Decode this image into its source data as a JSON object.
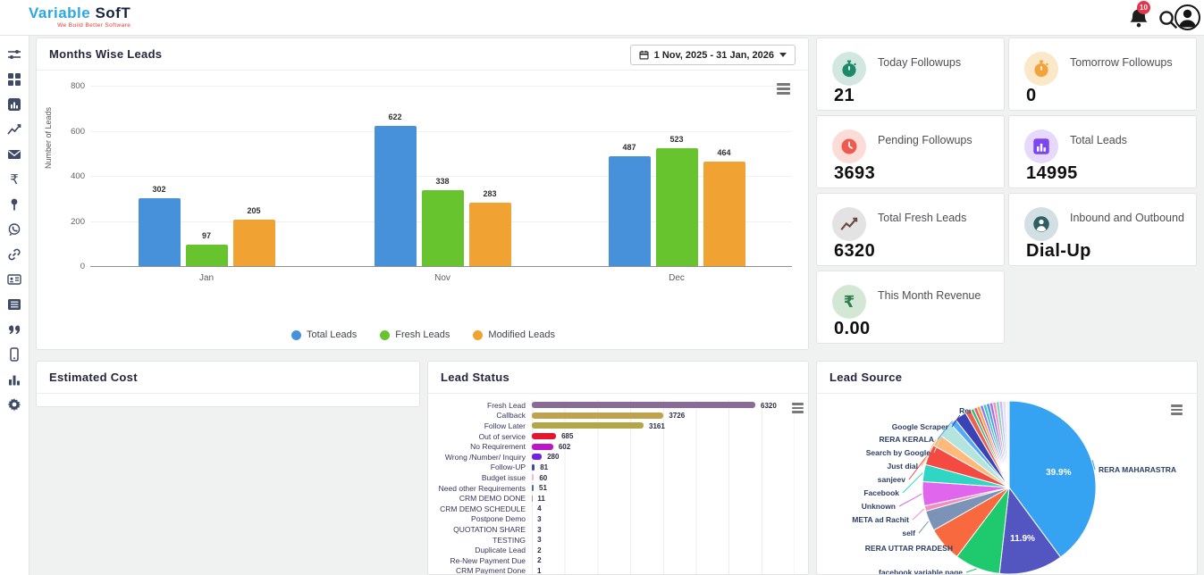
{
  "header": {
    "logo": {
      "part1": "Variable ",
      "part2": "Sof",
      "part3": "T",
      "tagline": "We Build Better Software"
    },
    "notifications_badge": "10"
  },
  "sidebar": {
    "items": [
      {
        "icon": "sliders"
      },
      {
        "icon": "grid"
      },
      {
        "icon": "chart-square"
      },
      {
        "icon": "line-chart"
      },
      {
        "icon": "mail"
      },
      {
        "icon": "rupee"
      },
      {
        "icon": "pin"
      },
      {
        "icon": "whatsapp"
      },
      {
        "icon": "link"
      },
      {
        "icon": "id-card"
      },
      {
        "icon": "list"
      },
      {
        "icon": "quote"
      },
      {
        "icon": "mobile"
      },
      {
        "icon": "bar-chart"
      },
      {
        "icon": "gear"
      }
    ]
  },
  "months_chart": {
    "title": "Months Wise Leads",
    "date_range": "1 Nov, 2025 - 31 Jan, 2026",
    "chart_data": {
      "type": "bar",
      "categories": [
        "Jan",
        "Nov",
        "Dec"
      ],
      "series": [
        {
          "name": "Total Leads",
          "color": "#4791db",
          "values": [
            302,
            622,
            487
          ]
        },
        {
          "name": "Fresh Leads",
          "color": "#67c42f",
          "values": [
            97,
            338,
            523
          ]
        },
        {
          "name": "Modified Leads",
          "color": "#f0a332",
          "values": [
            205,
            283,
            464
          ]
        }
      ],
      "xlabel": "",
      "ylabel": "Number of Leads",
      "ylim": [
        0,
        800
      ],
      "yticks": [
        0,
        200,
        400,
        600,
        800
      ],
      "legend_position": "bottom",
      "grid": true
    }
  },
  "stat_cards": [
    {
      "title": "Today Followups",
      "value": "21",
      "icon": "stopwatch",
      "icon_color": "#1d8a6a",
      "icon_bg": "#d2e7df"
    },
    {
      "title": "Tomorrow Followups",
      "value": "0",
      "icon": "stopwatch",
      "icon_color": "#f2a33c",
      "icon_bg": "#fbe8c9"
    },
    {
      "title": "Pending Followups",
      "value": "3693",
      "icon": "clock",
      "icon_color": "#f2594e",
      "icon_bg": "#fcdcd6"
    },
    {
      "title": "Total Leads",
      "value": "14995",
      "icon": "chart-square",
      "icon_color": "#7d45ef",
      "icon_bg": "#e6d9fb"
    },
    {
      "title": "Total Fresh Leads",
      "value": "6320",
      "icon": "line-chart",
      "icon_color": "#6b4a42",
      "icon_bg": "#e3e3e3"
    },
    {
      "title": "Inbound and Outbound",
      "value": "Dial-Up",
      "icon": "person",
      "icon_color": "#2d5f63",
      "icon_bg": "#d2e0e4"
    },
    {
      "title": "This Month Revenue",
      "value": "0.00",
      "icon": "rupee",
      "icon_color": "#2f7d4e",
      "icon_bg": "#d3e8d4"
    }
  ],
  "estimated_cost": {
    "title": "Estimated Cost"
  },
  "lead_status": {
    "title": "Lead Status",
    "chart_data": {
      "type": "bar",
      "orientation": "horizontal",
      "categories": [
        "Fresh Lead",
        "Callback",
        "Follow Later",
        "Out of service",
        "No Requirement",
        "Wrong /Number/ Inquiry",
        "Follow-UP",
        "Budget issue",
        "Need other Requirements",
        "CRM DEMO DONE",
        "CRM DEMO SCHEDULE",
        "Postpone Demo",
        "QUOTATION SHARE",
        "TESTING",
        "Duplicate Lead",
        "Re-New Payment Due",
        "CRM Payment Done"
      ],
      "values": [
        6320,
        3726,
        3161,
        685,
        602,
        280,
        81,
        60,
        51,
        11,
        4,
        3,
        3,
        3,
        2,
        2,
        1
      ],
      "colors": [
        "#8a6a96",
        "#bfa14e",
        "#b3a648",
        "#e8132c",
        "#bd13c9",
        "#7222e2",
        "#3949ab",
        "#f8b4d9",
        "#4f7396",
        "#999999",
        "#999999",
        "#999999",
        "#999999",
        "#999999",
        "#999999",
        "#999999",
        "#999999"
      ],
      "xlim": [
        0,
        6400
      ],
      "grid": true
    }
  },
  "lead_source": {
    "title": "Lead Source",
    "chart_data": {
      "type": "pie",
      "slices": [
        {
          "label": "RERA MAHARASTRA",
          "pct": 39.9,
          "color": "#35a2f2",
          "pct_label": "39.9%"
        },
        {
          "label": "",
          "pct": 11.9,
          "color": "#5356c1",
          "pct_label": "11.9%"
        },
        {
          "label": "facebook variable page",
          "pct": 8.5,
          "color": "#1fc96e"
        },
        {
          "label": "RERA UTTAR PRADESH",
          "pct": 6.5,
          "color": "#f8693f"
        },
        {
          "label": "self",
          "pct": 3.8,
          "color": "#7b93b7"
        },
        {
          "label": "META ad Rachit",
          "pct": 1.0,
          "color": "#f18fc1"
        },
        {
          "label": "Unknown",
          "pct": 4.5,
          "color": "#e066ee"
        },
        {
          "label": "Facebook",
          "pct": 3.2,
          "color": "#30d6c3"
        },
        {
          "label": "sanjeev",
          "pct": 3.8,
          "color": "#f44a41"
        },
        {
          "label": "Just dial",
          "pct": 2.3,
          "color": "#ffb97b"
        },
        {
          "label": "Search by Google",
          "pct": 2.8,
          "color": "#b3e4dd"
        },
        {
          "label": "RERA KERALA",
          "pct": 1.2,
          "color": "#55a9f8"
        },
        {
          "label": "Google Scraper",
          "pct": 2.2,
          "color": "#3b42b4"
        },
        {
          "label": "Rera",
          "pct": 1.1,
          "color": "#ee5f53"
        },
        {
          "label": "",
          "pct": 0.61,
          "color": "#2dbd80"
        },
        {
          "label": "",
          "pct": 0.61,
          "color": "#ef5950"
        },
        {
          "label": "",
          "pct": 0.61,
          "color": "#ff9e4f"
        },
        {
          "label": "",
          "pct": 0.61,
          "color": "#8b7bf1"
        },
        {
          "label": "",
          "pct": 0.61,
          "color": "#3fcabb"
        },
        {
          "label": "",
          "pct": 0.61,
          "color": "#4d96ec"
        },
        {
          "label": "",
          "pct": 0.61,
          "color": "#aa6fe0"
        },
        {
          "label": "",
          "pct": 0.61,
          "color": "#f78fbe"
        },
        {
          "label": "",
          "pct": 0.61,
          "color": "#7ed6b9"
        },
        {
          "label": "",
          "pct": 0.61,
          "color": "#c9bcf6"
        },
        {
          "label": "",
          "pct": 0.61,
          "color": "#e2def4"
        },
        {
          "label": "",
          "pct": 0.61,
          "color": "#f3f2f8"
        }
      ],
      "legend_position": "none"
    }
  }
}
